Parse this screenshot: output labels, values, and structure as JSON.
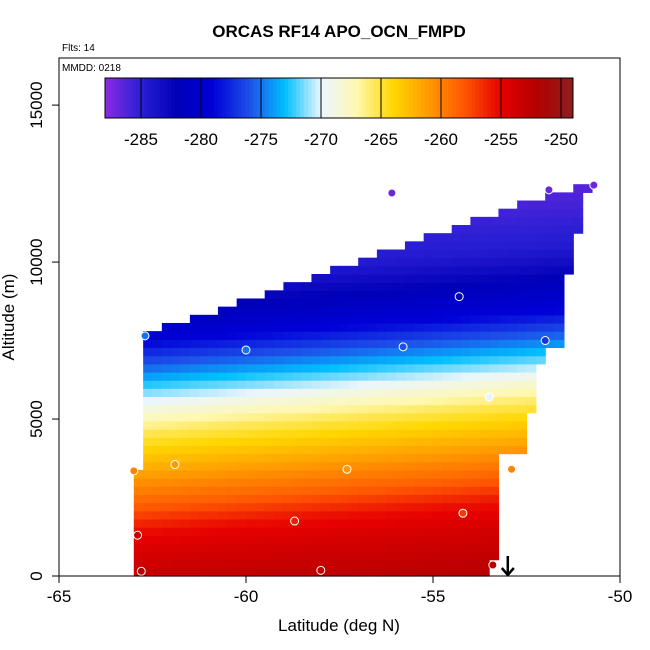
{
  "chart_data": {
    "type": "heatmap",
    "title": "ORCAS RF14 APO_OCN_FMPD",
    "subtitle_flts": "Flts: 14",
    "subtitle_mmdd": "MMDD: 0218",
    "xlabel": "Latitude (deg N)",
    "ylabel": "Altitude (m)",
    "xlim": [
      -65,
      -50
    ],
    "ylim": [
      0,
      16500
    ],
    "xticks": [
      -65,
      -60,
      -55,
      -50
    ],
    "yticks": [
      0,
      5000,
      10000,
      15000
    ],
    "xtick_labels": [
      "-65",
      "-60",
      "-55",
      "-50"
    ],
    "ytick_labels": [
      "0",
      "5000",
      "10000",
      "15000"
    ],
    "colorbar": {
      "min": -288,
      "max": -249,
      "ticks": [
        -285,
        -280,
        -275,
        -270,
        -265,
        -260,
        -255,
        -250
      ],
      "tick_labels": [
        "-285",
        "-280",
        "-275",
        "-270",
        "-265",
        "-260",
        "-255",
        "-250"
      ]
    },
    "field_profile": [
      {
        "alt": 0,
        "value": -252.5
      },
      {
        "alt": 1200,
        "value": -254
      },
      {
        "alt": 2000,
        "value": -255.5
      },
      {
        "alt": 2800,
        "value": -258.5
      },
      {
        "alt": 3500,
        "value": -260.5
      },
      {
        "alt": 4300,
        "value": -263
      },
      {
        "alt": 5100,
        "value": -265.5
      },
      {
        "alt": 5800,
        "value": -268.5
      },
      {
        "alt": 6500,
        "value": -272
      },
      {
        "alt": 7200,
        "value": -275.5
      },
      {
        "alt": 8000,
        "value": -279
      },
      {
        "alt": 9000,
        "value": -282
      },
      {
        "alt": 10000,
        "value": -284.5
      },
      {
        "alt": 11000,
        "value": -285.5
      },
      {
        "alt": 12000,
        "value": -286.5
      },
      {
        "alt": 12500,
        "value": -287.5
      }
    ],
    "observation_points": [
      {
        "lat": -62.8,
        "alt": 150,
        "value": -252
      },
      {
        "lat": -62.9,
        "alt": 1300,
        "value": -253
      },
      {
        "lat": -63.0,
        "alt": 3350,
        "value": -260
      },
      {
        "lat": -61.9,
        "alt": 3550,
        "value": -261
      },
      {
        "lat": -62.7,
        "alt": 7650,
        "value": -275
      },
      {
        "lat": -60.0,
        "alt": 7200,
        "value": -275
      },
      {
        "lat": -58.7,
        "alt": 1750,
        "value": -256
      },
      {
        "lat": -58.0,
        "alt": 180,
        "value": -253
      },
      {
        "lat": -57.3,
        "alt": 3400,
        "value": -261
      },
      {
        "lat": -56.1,
        "alt": 12200,
        "value": -287
      },
      {
        "lat": -55.8,
        "alt": 7300,
        "value": -276
      },
      {
        "lat": -54.3,
        "alt": 8900,
        "value": -282
      },
      {
        "lat": -54.2,
        "alt": 2000,
        "value": -257
      },
      {
        "lat": -53.5,
        "alt": 5700,
        "value": -270
      },
      {
        "lat": -53.4,
        "alt": 350,
        "value": -252
      },
      {
        "lat": -52.9,
        "alt": 3400,
        "value": -260
      },
      {
        "lat": -52.0,
        "alt": 7500,
        "value": -277
      },
      {
        "lat": -51.9,
        "alt": 12300,
        "value": -287
      },
      {
        "lat": -50.7,
        "alt": 12450,
        "value": -287
      }
    ],
    "marker": {
      "lat": -53.0,
      "alt": 0,
      "symbol": "down-arrow"
    },
    "grid": false,
    "legend": "colorbar-top"
  },
  "colors": {
    "ramp": [
      "#8a2be2",
      "#2a1fd4",
      "#0000b8",
      "#0000d8",
      "#1e4fe8",
      "#00bfff",
      "#eaf6ff",
      "#fff8b0",
      "#ffd700",
      "#ff9900",
      "#ff5500",
      "#e60000",
      "#b30000",
      "#8b2020"
    ]
  }
}
